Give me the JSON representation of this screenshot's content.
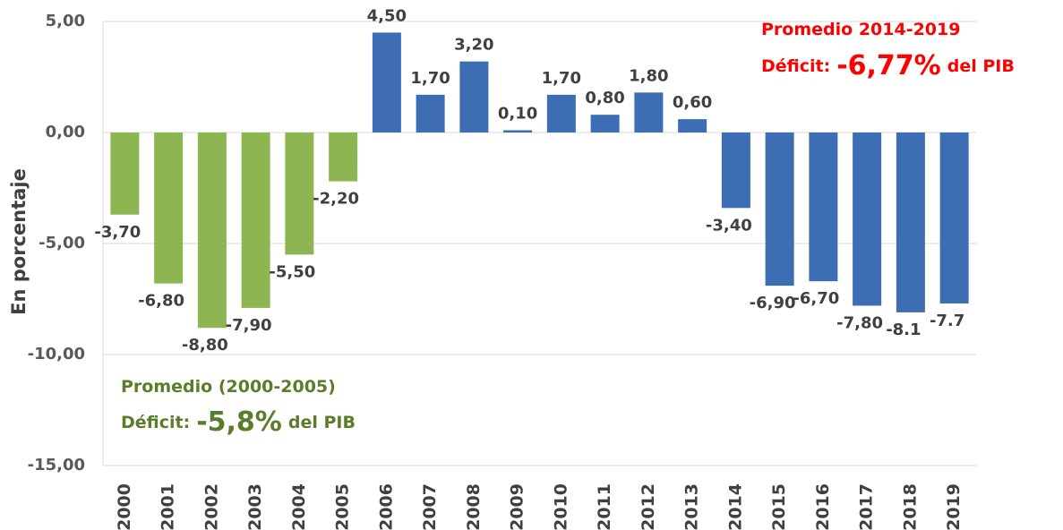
{
  "chart_data": {
    "type": "bar",
    "y_label": "En porcentaje",
    "categories": [
      "2000",
      "2001",
      "2002",
      "2003",
      "2004",
      "2005",
      "2006",
      "2007",
      "2008",
      "2009",
      "2010",
      "2011",
      "2012",
      "2013",
      "2014",
      "2015",
      "2016",
      "2017",
      "2018",
      "2019"
    ],
    "values": [
      -3.7,
      -6.8,
      -8.8,
      -7.9,
      -5.5,
      -2.2,
      4.5,
      1.7,
      3.2,
      0.1,
      1.7,
      0.8,
      1.8,
      0.6,
      -3.4,
      -6.9,
      -6.7,
      -7.8,
      -8.1,
      -7.7
    ],
    "value_labels": [
      "-3,70",
      "-6,80",
      "-8,80",
      "-7,90",
      "-5,50",
      "-2,20",
      "4,50",
      "1,70",
      "3,20",
      "0,10",
      "1,70",
      "0,80",
      "1,80",
      "0,60",
      "-3,40",
      "-6,90",
      "-6,70",
      "-7,80",
      "-8.1",
      "-7.7"
    ],
    "colors": [
      "#8db653",
      "#8db653",
      "#8db653",
      "#8db653",
      "#8db653",
      "#8db653",
      "#3d6db2",
      "#3d6db2",
      "#3d6db2",
      "#3d6db2",
      "#3d6db2",
      "#3d6db2",
      "#3d6db2",
      "#3d6db2",
      "#3d6db2",
      "#3d6db2",
      "#3d6db2",
      "#3d6db2",
      "#3d6db2",
      "#3d6db2"
    ],
    "ylim": [
      -15,
      5
    ],
    "yticks": [
      {
        "value": -15,
        "label": "-15,00"
      },
      {
        "value": -10,
        "label": "-10,00"
      },
      {
        "value": -5,
        "label": "-5,00"
      },
      {
        "value": 0,
        "label": "0,00"
      },
      {
        "value": 5,
        "label": "5,00"
      }
    ],
    "grid": true,
    "annotations": [
      {
        "color": "#ff0000",
        "lines": [
          [
            "Promedio 2014-2019"
          ],
          [
            "Déficit:",
            "-6,77%",
            "del PIB"
          ]
        ]
      },
      {
        "color": "#5b7d2b",
        "lines": [
          [
            "Promedio (2000-2005)"
          ],
          [
            "Déficit:",
            "-5,8%",
            "del PIB"
          ]
        ]
      }
    ]
  }
}
